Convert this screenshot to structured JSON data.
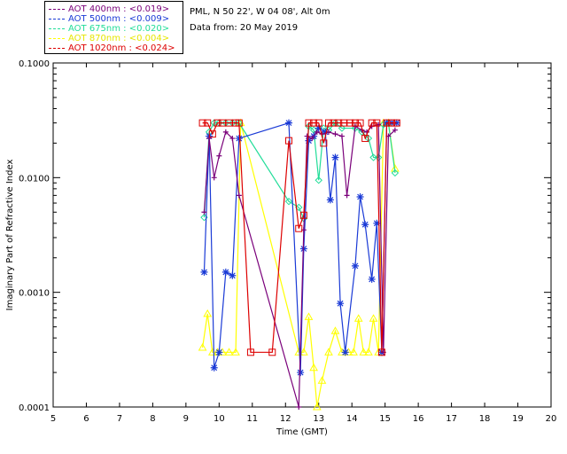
{
  "legend": [
    {
      "label": "AOT  400nm : <0.019>",
      "color": "#7a007a"
    },
    {
      "label": "AOT  500nm : <0.009>",
      "color": "#1a3ad6"
    },
    {
      "label": "AOT  675nm : <0.020>",
      "color": "#22dd99"
    },
    {
      "label": "AOT  870nm : <0.004>",
      "color": "#ffff00"
    },
    {
      "label": "AOT 1020nm : <0.024>",
      "color": "#dd0000"
    }
  ],
  "info": {
    "site": "PML, N 50 22', W 04 08', Alt 0m",
    "date": "Data from: 20 May 2019"
  },
  "chart_data": {
    "type": "scatter",
    "title": "",
    "xlabel": "Time (GMT)",
    "ylabel": "Imaginary Part of Refractive Index",
    "xlim": [
      5,
      20
    ],
    "ylim": [
      0.0001,
      0.1
    ],
    "yscale": "log",
    "xticks": [
      "5",
      "6",
      "7",
      "8",
      "9",
      "10",
      "11",
      "12",
      "13",
      "14",
      "15",
      "16",
      "17",
      "18",
      "19",
      "20"
    ],
    "yticks": [
      "0.0001",
      "0.0010",
      "0.0100",
      "0.1000"
    ],
    "series": [
      {
        "name": "AOT 400nm",
        "color": "#7a007a",
        "marker": "plus",
        "x": [
          9.55,
          9.7,
          9.85,
          10.0,
          10.2,
          10.4,
          10.6,
          12.4,
          12.55,
          12.65,
          12.8,
          12.95,
          13.1,
          13.3,
          13.5,
          13.7,
          13.85,
          14.1,
          14.3,
          14.45,
          14.6,
          14.8,
          14.95,
          15.1,
          15.3
        ],
        "y": [
          0.005,
          0.022,
          0.01,
          0.0155,
          0.025,
          0.022,
          0.007,
          0.0001,
          0.0035,
          0.023,
          0.022,
          0.025,
          0.024,
          0.025,
          0.024,
          0.023,
          0.007,
          0.028,
          0.026,
          0.025,
          0.028,
          0.029,
          0.0003,
          0.023,
          0.026
        ]
      },
      {
        "name": "AOT 500nm",
        "color": "#1a3ad6",
        "marker": "star",
        "x": [
          9.55,
          9.7,
          9.85,
          10.0,
          10.2,
          10.4,
          10.6,
          12.1,
          12.45,
          12.55,
          12.7,
          12.85,
          13.0,
          13.2,
          13.35,
          13.5,
          13.65,
          13.8,
          14.1,
          14.25,
          14.4,
          14.6,
          14.75,
          14.9,
          15.05,
          15.2,
          15.35
        ],
        "y": [
          0.0015,
          0.023,
          0.00022,
          0.0003,
          0.0015,
          0.0014,
          0.022,
          0.03,
          0.0002,
          0.0024,
          0.021,
          0.023,
          0.027,
          0.025,
          0.0064,
          0.015,
          0.0008,
          0.0003,
          0.0017,
          0.0068,
          0.0039,
          0.0013,
          0.004,
          0.0003,
          0.03,
          0.03,
          0.03
        ]
      },
      {
        "name": "AOT 675nm",
        "color": "#22dd99",
        "marker": "diamond",
        "x": [
          9.55,
          9.7,
          9.85,
          10.0,
          10.2,
          10.4,
          10.6,
          12.1,
          12.4,
          12.55,
          12.7,
          12.85,
          13.0,
          13.15,
          13.3,
          13.5,
          13.7,
          14.1,
          14.3,
          14.5,
          14.65,
          14.8,
          14.95,
          15.1,
          15.3
        ],
        "y": [
          0.0045,
          0.025,
          0.03,
          0.03,
          0.03,
          0.03,
          0.03,
          0.0062,
          0.0055,
          0.0044,
          0.028,
          0.026,
          0.0095,
          0.027,
          0.026,
          0.03,
          0.027,
          0.027,
          0.025,
          0.022,
          0.015,
          0.015,
          0.029,
          0.03,
          0.011
        ]
      },
      {
        "name": "AOT 870nm",
        "color": "#ffff00",
        "marker": "triangle",
        "x": [
          9.5,
          9.65,
          9.8,
          9.95,
          10.1,
          10.3,
          10.5,
          10.65,
          12.4,
          12.55,
          12.7,
          12.85,
          12.95,
          13.1,
          13.3,
          13.5,
          13.7,
          13.9,
          14.05,
          14.2,
          14.35,
          14.5,
          14.65,
          14.8,
          14.95,
          15.1,
          15.3
        ],
        "y": [
          0.00033,
          0.00065,
          0.0003,
          0.0003,
          0.0003,
          0.0003,
          0.0003,
          0.03,
          0.0003,
          0.0003,
          0.00061,
          0.00022,
          0.0001,
          0.00017,
          0.0003,
          0.00046,
          0.0003,
          0.0003,
          0.0003,
          0.00059,
          0.0003,
          0.0003,
          0.00059,
          0.0003,
          0.03,
          0.03,
          0.012
        ]
      },
      {
        "name": "AOT 1020nm",
        "color": "#dd0000",
        "marker": "square",
        "x": [
          9.5,
          9.65,
          9.8,
          9.95,
          10.1,
          10.3,
          10.5,
          10.6,
          10.95,
          11.6,
          12.1,
          12.4,
          12.55,
          12.7,
          12.85,
          13.0,
          13.15,
          13.3,
          13.45,
          13.6,
          13.75,
          13.95,
          14.1,
          14.25,
          14.4,
          14.6,
          14.75,
          14.9,
          15.05,
          15.2,
          15.35
        ],
        "y": [
          0.03,
          0.03,
          0.024,
          0.03,
          0.03,
          0.03,
          0.03,
          0.03,
          0.0003,
          0.0003,
          0.021,
          0.0036,
          0.0047,
          0.03,
          0.03,
          0.03,
          0.02,
          0.03,
          0.03,
          0.03,
          0.03,
          0.03,
          0.03,
          0.03,
          0.022,
          0.03,
          0.03,
          0.0003,
          0.03,
          0.03,
          0.03
        ]
      }
    ]
  }
}
